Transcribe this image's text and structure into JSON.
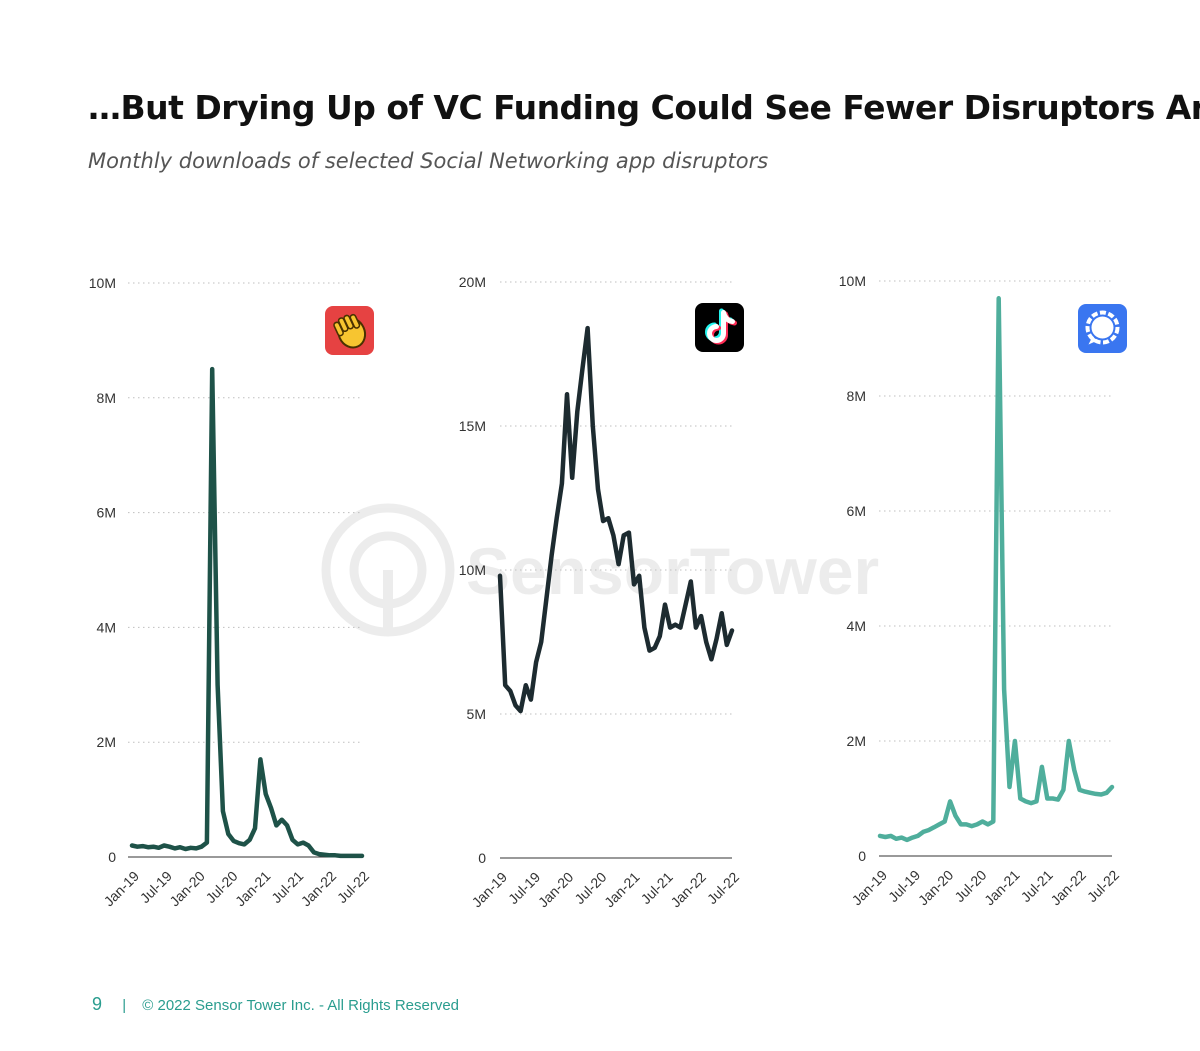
{
  "header": {
    "title": "…But Drying Up of VC Funding Could See Fewer Disruptors Arise",
    "subtitle": "Monthly downloads of selected Social Networking app disruptors"
  },
  "watermark": {
    "text": "SensorTower",
    "icon": "sensor-tower-logo-icon"
  },
  "footer": {
    "page_number": "9",
    "separator": "|",
    "copyright": "© 2022 Sensor Tower Inc. - All Rights Reserved"
  },
  "chart_data": [
    {
      "type": "line",
      "app": "Clubhouse",
      "icon": "clubhouse-wave-hand-icon",
      "color": "#1e5248",
      "icon_bg": "#e64242",
      "title": "",
      "xlabel": "",
      "ylabel": "",
      "ylim": [
        0,
        10
      ],
      "y_ticks": [
        0,
        2,
        4,
        6,
        8,
        10
      ],
      "y_tick_labels": [
        "0",
        "2M",
        "4M",
        "6M",
        "8M",
        "10M"
      ],
      "x_ticks": [
        0,
        6,
        12,
        18,
        24,
        30,
        36,
        42
      ],
      "x_tick_labels": [
        "Jan-19",
        "Jul-19",
        "Jan-20",
        "Jul-20",
        "Jan-21",
        "Jul-21",
        "Jan-22",
        "Jul-22"
      ],
      "grid": true,
      "series": [
        {
          "name": "Monthly downloads (M)",
          "values": [
            0.2,
            0.18,
            0.19,
            0.17,
            0.18,
            0.16,
            0.2,
            0.18,
            0.15,
            0.17,
            0.14,
            0.16,
            0.15,
            0.18,
            0.25,
            8.5,
            3.0,
            0.8,
            0.4,
            0.28,
            0.24,
            0.22,
            0.3,
            0.5,
            1.7,
            1.1,
            0.85,
            0.55,
            0.65,
            0.55,
            0.3,
            0.22,
            0.25,
            0.2,
            0.08,
            0.05,
            0.04,
            0.03,
            0.03,
            0.02,
            0.02,
            0.02,
            0.02,
            0.02
          ]
        }
      ]
    },
    {
      "type": "line",
      "app": "TikTok",
      "icon": "tiktok-note-icon",
      "color": "#1d2b30",
      "icon_bg": "#000000",
      "title": "",
      "xlabel": "",
      "ylabel": "",
      "ylim": [
        0,
        20
      ],
      "y_ticks": [
        0,
        5,
        10,
        15,
        20
      ],
      "y_tick_labels": [
        "0",
        "5M",
        "10M",
        "15M",
        "20M"
      ],
      "x_ticks": [
        0,
        6,
        12,
        18,
        24,
        30,
        36,
        42
      ],
      "x_tick_labels": [
        "Jan-19",
        "Jul-19",
        "Jan-20",
        "Jul-20",
        "Jan-21",
        "Jul-21",
        "Jan-22",
        "Jul-22"
      ],
      "grid": true,
      "series": [
        {
          "name": "Monthly downloads (M)",
          "values": [
            9.8,
            6.0,
            5.8,
            5.3,
            5.1,
            6.0,
            5.5,
            6.8,
            7.5,
            9.0,
            10.5,
            11.8,
            13.0,
            16.1,
            13.2,
            15.5,
            17.0,
            18.4,
            15.0,
            12.8,
            11.7,
            11.8,
            11.2,
            10.2,
            11.2,
            11.3,
            9.5,
            9.8,
            8.0,
            7.2,
            7.3,
            7.7,
            8.8,
            8.0,
            8.1,
            8.0,
            8.8,
            9.6,
            8.0,
            8.4,
            7.5,
            6.9,
            7.6,
            8.5,
            7.4,
            7.9
          ]
        }
      ]
    },
    {
      "type": "line",
      "app": "Signal",
      "icon": "signal-chat-bubble-icon",
      "color": "#4fae9c",
      "icon_bg": "#3a76f0",
      "title": "",
      "xlabel": "",
      "ylabel": "",
      "ylim": [
        0,
        10
      ],
      "y_ticks": [
        0,
        2,
        4,
        6,
        8,
        10
      ],
      "y_tick_labels": [
        "0",
        "2M",
        "4M",
        "6M",
        "8M",
        "10M"
      ],
      "x_ticks": [
        0,
        6,
        12,
        18,
        24,
        30,
        36,
        42
      ],
      "x_tick_labels": [
        "Jan-19",
        "Jul-19",
        "Jan-20",
        "Jul-20",
        "Jan-21",
        "Jul-21",
        "Jan-22",
        "Jul-22"
      ],
      "grid": true,
      "series": [
        {
          "name": "Monthly downloads (M)",
          "values": [
            0.35,
            0.33,
            0.35,
            0.3,
            0.32,
            0.28,
            0.32,
            0.35,
            0.42,
            0.45,
            0.5,
            0.55,
            0.6,
            0.95,
            0.7,
            0.55,
            0.55,
            0.52,
            0.55,
            0.6,
            0.55,
            0.6,
            9.7,
            2.9,
            1.2,
            2.0,
            1.0,
            0.95,
            0.92,
            0.95,
            1.55,
            1.0,
            1.0,
            0.98,
            1.15,
            2.0,
            1.5,
            1.15,
            1.12,
            1.1,
            1.08,
            1.07,
            1.1,
            1.2
          ]
        }
      ]
    }
  ]
}
